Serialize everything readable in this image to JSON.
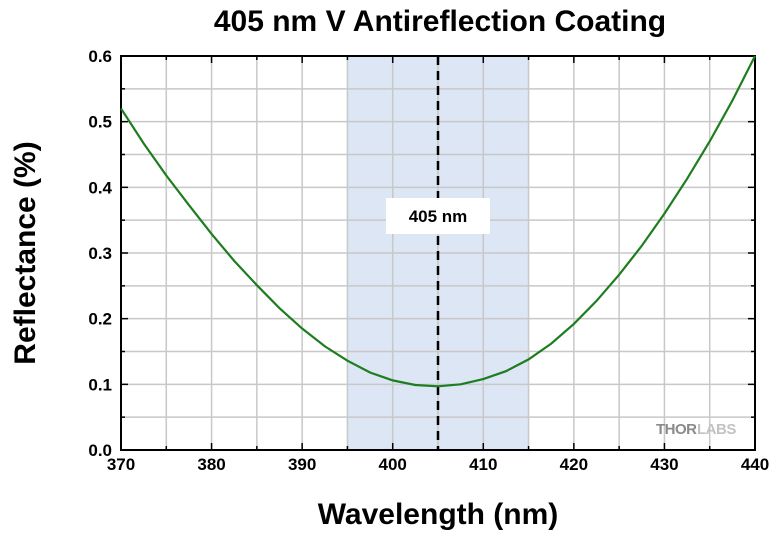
{
  "chart_data": {
    "type": "line",
    "title": "405 nm V Antireflection Coating",
    "xlabel": "Wavelength (nm)",
    "ylabel": "Reflectance (%)",
    "xlim": [
      370,
      440
    ],
    "ylim": [
      0.0,
      0.6
    ],
    "x_ticks": [
      "370",
      "380",
      "390",
      "400",
      "410",
      "420",
      "430",
      "440"
    ],
    "y_ticks": [
      "0.0",
      "0.1",
      "0.2",
      "0.3",
      "0.4",
      "0.5",
      "0.6"
    ],
    "grid": true,
    "shaded_region": {
      "x_start": 395,
      "x_end": 415,
      "color": "#dce6f5"
    },
    "reference_line": {
      "x": 405,
      "style": "dashed",
      "label": "405 nm"
    },
    "series": [
      {
        "color": "#1e7d1e",
        "x": [
          370,
          372.5,
          375,
          377.5,
          380,
          382.5,
          385,
          387.5,
          390,
          392.5,
          395,
          397.5,
          400,
          402.5,
          405,
          407.5,
          410,
          412.5,
          415,
          417.5,
          420,
          422.5,
          425,
          427.5,
          430,
          432.5,
          435,
          437.5,
          440
        ],
        "y": [
          0.52,
          0.467,
          0.418,
          0.373,
          0.329,
          0.288,
          0.251,
          0.216,
          0.185,
          0.158,
          0.136,
          0.118,
          0.106,
          0.099,
          0.097,
          0.1,
          0.108,
          0.12,
          0.138,
          0.162,
          0.192,
          0.227,
          0.267,
          0.311,
          0.36,
          0.413,
          0.47,
          0.532,
          0.6
        ]
      }
    ]
  },
  "watermark": {
    "part1": "THOR",
    "part2": "LABS"
  }
}
